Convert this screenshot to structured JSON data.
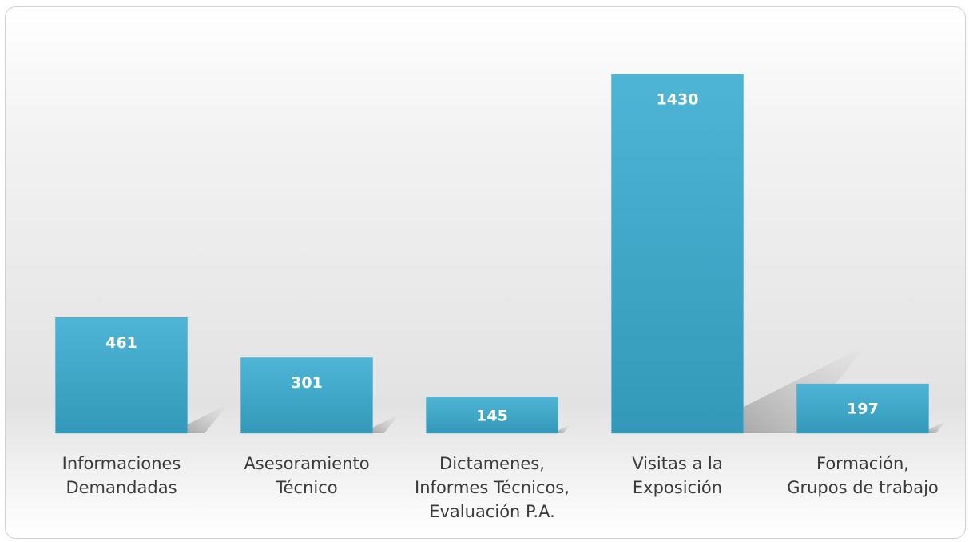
{
  "chart_data": {
    "type": "bar",
    "categories": [
      "Informaciones\nDemandadas",
      "Asesoramiento\nTécnico",
      "Dictamenes,\nInformes Técnicos,\nEvaluación P.A.",
      "Visitas a la\nExposición",
      "Formación,\nGrupos de trabajo"
    ],
    "values": [
      461,
      301,
      145,
      1430,
      197
    ],
    "color": "#4bb0d0"
  }
}
